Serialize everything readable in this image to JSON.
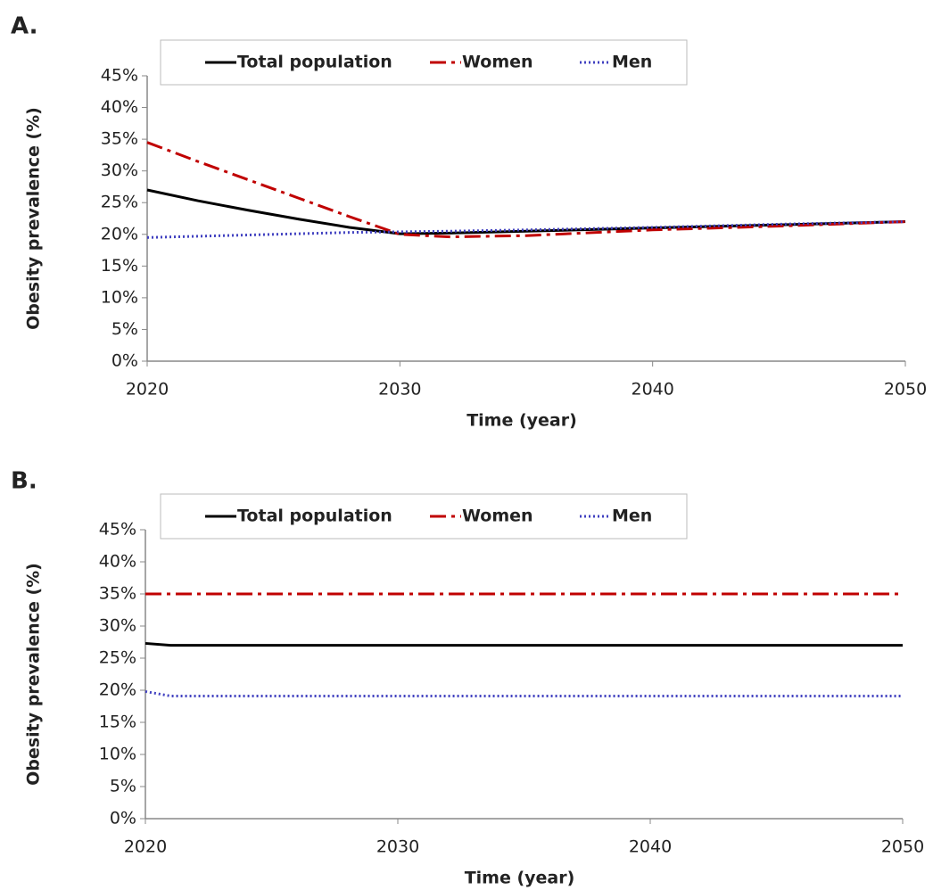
{
  "chart_data": [
    {
      "type": "line",
      "panel_label": "A.",
      "xlabel": "Time (year)",
      "ylabel": "Obesity prevalence (%)",
      "x": [
        2020,
        2022,
        2024,
        2026,
        2028,
        2030,
        2032,
        2035,
        2040,
        2045,
        2050
      ],
      "series": [
        {
          "name": "Total population",
          "color": "#000000",
          "dash": "solid",
          "values": [
            27,
            25.3,
            23.8,
            22.4,
            21.1,
            20.1,
            20.2,
            20.5,
            21,
            21.5,
            22
          ]
        },
        {
          "name": "Women",
          "color": "#c00000",
          "dash": "dashdot",
          "values": [
            34.5,
            31.5,
            28.6,
            25.7,
            22.8,
            20,
            19.6,
            19.8,
            20.7,
            21.3,
            22
          ]
        },
        {
          "name": "Men",
          "color": "#4040c0",
          "dash": "dotted",
          "values": [
            19.5,
            19.7,
            19.9,
            20.1,
            20.3,
            20.4,
            20.5,
            20.7,
            21.1,
            21.6,
            22
          ]
        }
      ],
      "xlim": [
        2020,
        2050
      ],
      "ylim": [
        0,
        45
      ],
      "xticks": [
        2020,
        2030,
        2040,
        2050
      ],
      "yticks": [
        {
          "value": 0,
          "label": "0%"
        },
        {
          "value": 5,
          "label": "5%"
        },
        {
          "value": 10,
          "label": "10%"
        },
        {
          "value": 15,
          "label": "15%"
        },
        {
          "value": 20,
          "label": "20%"
        },
        {
          "value": 25,
          "label": "25%"
        },
        {
          "value": 30,
          "label": "30%"
        },
        {
          "value": 35,
          "label": "35%"
        },
        {
          "value": 40,
          "label": "40%"
        },
        {
          "value": 45,
          "label": "45%"
        }
      ],
      "legend": "top",
      "grid": false
    },
    {
      "type": "line",
      "panel_label": "B.",
      "xlabel": "Time (year)",
      "ylabel": "Obesity prevalence (%)",
      "x": [
        2020,
        2021,
        2030,
        2040,
        2050
      ],
      "series": [
        {
          "name": "Total population",
          "color": "#000000",
          "dash": "solid",
          "values": [
            27.3,
            27,
            27,
            27,
            27
          ]
        },
        {
          "name": "Women",
          "color": "#c00000",
          "dash": "dashdot",
          "values": [
            35,
            35,
            35,
            35,
            35
          ]
        },
        {
          "name": "Men",
          "color": "#4040c0",
          "dash": "dotted",
          "values": [
            19.8,
            19.1,
            19.1,
            19.1,
            19.1
          ]
        }
      ],
      "xlim": [
        2020,
        2050
      ],
      "ylim": [
        0,
        45
      ],
      "xticks": [
        2020,
        2030,
        2040,
        2050
      ],
      "yticks": [
        {
          "value": 0,
          "label": "0%"
        },
        {
          "value": 5,
          "label": "5%"
        },
        {
          "value": 10,
          "label": "10%"
        },
        {
          "value": 15,
          "label": "15%"
        },
        {
          "value": 20,
          "label": "20%"
        },
        {
          "value": 25,
          "label": "25%"
        },
        {
          "value": 30,
          "label": "30%"
        },
        {
          "value": 35,
          "label": "35%"
        },
        {
          "value": 40,
          "label": "40%"
        },
        {
          "value": 45,
          "label": "45%"
        }
      ],
      "legend": "top",
      "grid": false
    }
  ]
}
